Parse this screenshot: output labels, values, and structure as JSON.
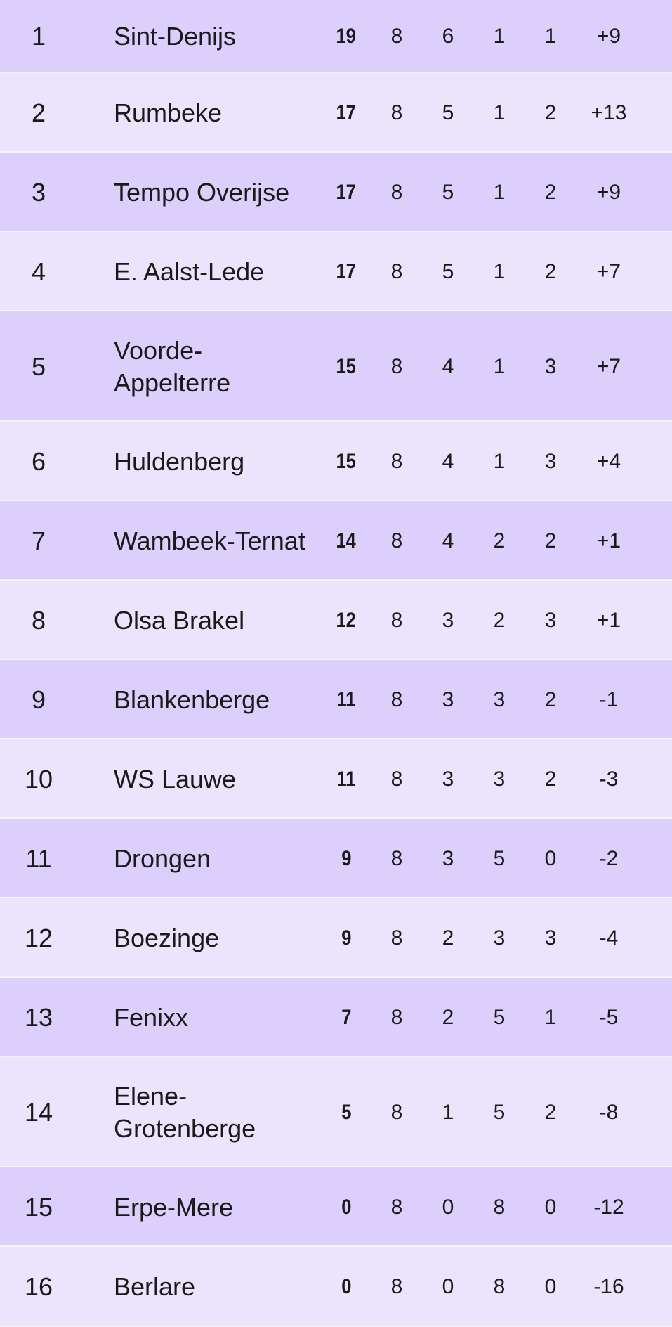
{
  "standings": [
    {
      "pos": "1",
      "team": "Sint-Denijs",
      "pts": "19",
      "played": "8",
      "won": "6",
      "lost": "1",
      "drawn": "1",
      "diff": "+9"
    },
    {
      "pos": "2",
      "team": "Rumbeke",
      "pts": "17",
      "played": "8",
      "won": "5",
      "lost": "1",
      "drawn": "2",
      "diff": "+13"
    },
    {
      "pos": "3",
      "team": "Tempo Overijse",
      "pts": "17",
      "played": "8",
      "won": "5",
      "lost": "1",
      "drawn": "2",
      "diff": "+9"
    },
    {
      "pos": "4",
      "team": "E. Aalst-Lede",
      "pts": "17",
      "played": "8",
      "won": "5",
      "lost": "1",
      "drawn": "2",
      "diff": "+7"
    },
    {
      "pos": "5",
      "team": "Voorde-\nAppelterre",
      "pts": "15",
      "played": "8",
      "won": "4",
      "lost": "1",
      "drawn": "3",
      "diff": "+7"
    },
    {
      "pos": "6",
      "team": "Huldenberg",
      "pts": "15",
      "played": "8",
      "won": "4",
      "lost": "1",
      "drawn": "3",
      "diff": "+4"
    },
    {
      "pos": "7",
      "team": "Wambeek-Ternat",
      "pts": "14",
      "played": "8",
      "won": "4",
      "lost": "2",
      "drawn": "2",
      "diff": "+1"
    },
    {
      "pos": "8",
      "team": "Olsa Brakel",
      "pts": "12",
      "played": "8",
      "won": "3",
      "lost": "2",
      "drawn": "3",
      "diff": "+1"
    },
    {
      "pos": "9",
      "team": "Blankenberge",
      "pts": "11",
      "played": "8",
      "won": "3",
      "lost": "3",
      "drawn": "2",
      "diff": "-1"
    },
    {
      "pos": "10",
      "team": "WS Lauwe",
      "pts": "11",
      "played": "8",
      "won": "3",
      "lost": "3",
      "drawn": "2",
      "diff": "-3"
    },
    {
      "pos": "11",
      "team": "Drongen",
      "pts": "9",
      "played": "8",
      "won": "3",
      "lost": "5",
      "drawn": "0",
      "diff": "-2"
    },
    {
      "pos": "12",
      "team": "Boezinge",
      "pts": "9",
      "played": "8",
      "won": "2",
      "lost": "3",
      "drawn": "3",
      "diff": "-4"
    },
    {
      "pos": "13",
      "team": "Fenixx",
      "pts": "7",
      "played": "8",
      "won": "2",
      "lost": "5",
      "drawn": "1",
      "diff": "-5"
    },
    {
      "pos": "14",
      "team": "Elene-\nGrotenberge",
      "pts": "5",
      "played": "8",
      "won": "1",
      "lost": "5",
      "drawn": "2",
      "diff": "-8"
    },
    {
      "pos": "15",
      "team": "Erpe-Mere",
      "pts": "0",
      "played": "8",
      "won": "0",
      "lost": "8",
      "drawn": "0",
      "diff": "-12"
    },
    {
      "pos": "16",
      "team": "Berlare",
      "pts": "0",
      "played": "8",
      "won": "0",
      "lost": "8",
      "drawn": "0",
      "diff": "-16"
    }
  ],
  "colors": {
    "row_odd": "#dccffb",
    "row_even": "#ece4fd",
    "separator": "#f6f2fe"
  }
}
